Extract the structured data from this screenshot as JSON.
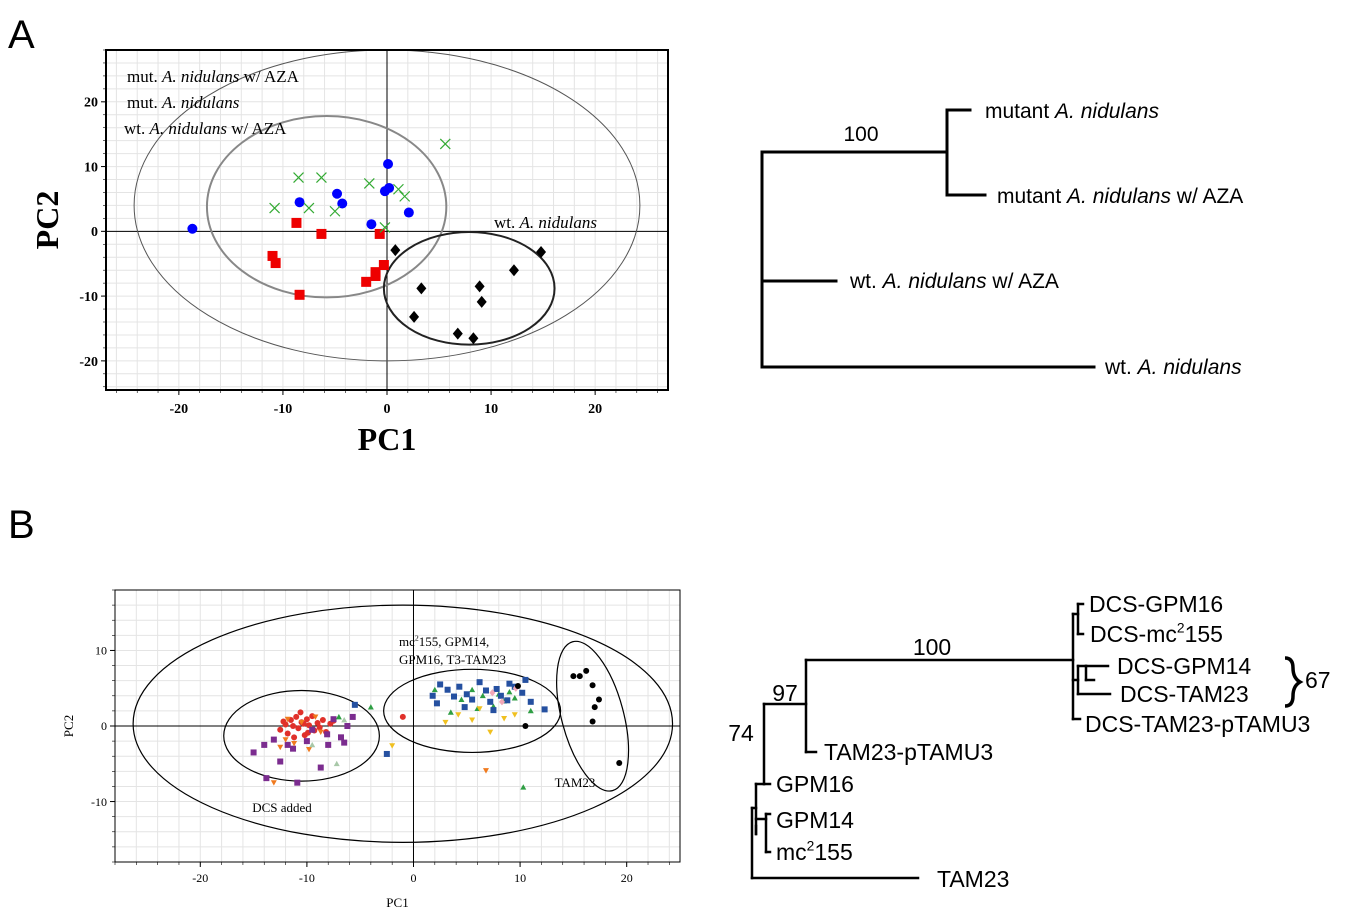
{
  "panels": {
    "A": {
      "label": "A"
    },
    "B": {
      "label": "B"
    }
  },
  "chart_data": [
    {
      "id": "A_pca",
      "type": "scatter",
      "xlabel": "PC1",
      "ylabel": "PC2",
      "xlim": [
        -27,
        27
      ],
      "ylim": [
        -24.5,
        28
      ],
      "xticks": [
        -20,
        -10,
        0,
        10,
        20
      ],
      "yticks": [
        -20,
        -10,
        0,
        10,
        20
      ],
      "grid": true,
      "legend_lines": [
        {
          "parts": [
            [
              "mut. ",
              false
            ],
            [
              "A. nidulans",
              true
            ],
            [
              " w/ AZA",
              false
            ]
          ]
        },
        {
          "parts": [
            [
              "mut. ",
              false
            ],
            [
              "A. nidulans",
              true
            ]
          ]
        },
        {
          "parts": [
            [
              "wt. ",
              false
            ],
            [
              "A. nidulans",
              true
            ],
            [
              " w/ AZA",
              false
            ]
          ]
        }
      ],
      "group_label": {
        "parts": [
          [
            "wt. ",
            false
          ],
          [
            "A. nidulans",
            true
          ]
        ]
      },
      "ellipses": [
        {
          "cx": 0,
          "cy": 4,
          "rx": 24.3,
          "ry": 24,
          "color": "#555555",
          "width": 1
        },
        {
          "cx": -5.8,
          "cy": 3.8,
          "rx": 11.5,
          "ry": 14,
          "color": "#888888",
          "width": 2
        },
        {
          "cx": 7.9,
          "cy": -8.8,
          "rx": 8.2,
          "ry": 8.7,
          "color": "#222222",
          "width": 2
        }
      ],
      "series": [
        {
          "marker": "circle",
          "color": "#0000ff",
          "x": [
            -18.7,
            -8.4,
            -4.8,
            -4.3,
            -1.5,
            -0.2,
            0.2,
            0.1,
            2.1
          ],
          "y": [
            0.4,
            4.5,
            5.8,
            4.3,
            1.1,
            6.2,
            6.7,
            10.4,
            2.9
          ]
        },
        {
          "marker": "square",
          "color": "#ee0000",
          "x": [
            -11,
            -10.7,
            -8.7,
            -8.4,
            -6.3,
            -2,
            -1.1,
            -1.1,
            -0.7,
            -0.3
          ],
          "y": [
            -3.8,
            -4.9,
            1.3,
            -9.8,
            -0.4,
            -7.8,
            -6.3,
            -6.9,
            -0.4,
            -5.2
          ],
          "width": [
            1,
            1,
            1,
            1,
            1,
            1,
            1,
            1,
            1,
            1
          ]
        },
        {
          "marker": "x",
          "color": "#33aa33",
          "x": [
            -10.8,
            -8.5,
            -7.5,
            -6.3,
            -5,
            -1.7,
            -0.2,
            1.1,
            1.7,
            5.6
          ],
          "y": [
            3.6,
            8.3,
            3.6,
            8.3,
            3.1,
            7.4,
            0.6,
            6.5,
            5.4,
            13.5
          ]
        },
        {
          "marker": "diamond",
          "color": "#000000",
          "x": [
            0.8,
            2.6,
            3.3,
            6.8,
            8.3,
            8.9,
            9.1,
            12.2,
            14.8
          ],
          "y": [
            -2.9,
            -13.2,
            -8.8,
            -15.8,
            -16.5,
            -8.5,
            -10.9,
            -6,
            -3.2
          ]
        }
      ]
    },
    {
      "id": "A_tree",
      "type": "dendrogram",
      "leaves": [
        {
          "parts": [
            [
              "mutant  ",
              false
            ],
            [
              "A. nidulans",
              true
            ]
          ]
        },
        {
          "parts": [
            [
              "mutant ",
              false
            ],
            [
              "A. nidulans",
              true
            ],
            [
              "  w/ AZA",
              false
            ]
          ]
        },
        {
          "parts": [
            [
              "wt. ",
              false
            ],
            [
              "A. nidulans",
              true
            ],
            [
              " w/ AZA",
              false
            ]
          ]
        },
        {
          "parts": [
            [
              "wt. ",
              false
            ],
            [
              "A. nidulans",
              true
            ]
          ]
        }
      ],
      "bootstrap": [
        "100"
      ]
    },
    {
      "id": "B_pca",
      "type": "scatter",
      "xlabel": "PC1",
      "ylabel": "PC2",
      "xlim": [
        -28,
        25
      ],
      "ylim": [
        -18,
        18
      ],
      "xticks": [
        -20,
        -10,
        0,
        10,
        20
      ],
      "yticks": [
        -10,
        0,
        10
      ],
      "grid": true,
      "group_labels": {
        "dcs": "DCS added",
        "mix_line1_pre": "mc",
        "mix_line1_sup": "2",
        "mix_line1_post": "155, GPM14,",
        "mix_line2": "GPM16, T3-TAM23",
        "tam": "TAM23"
      },
      "ellipses": [
        {
          "cx": -1,
          "cy": 0.3,
          "rx": 25.3,
          "ry": 15.7,
          "color": "#000000",
          "width": 1.2,
          "rot": 0
        },
        {
          "cx": -10.5,
          "cy": -1.3,
          "rx": 7.3,
          "ry": 6,
          "color": "#000000",
          "width": 1.2,
          "rot": 0
        },
        {
          "cx": 5.5,
          "cy": 2,
          "rx": 8.3,
          "ry": 5.5,
          "color": "#000000",
          "width": 1.2,
          "rot": 0
        },
        {
          "cx": 16.8,
          "cy": 1.3,
          "rx": 2.9,
          "ry": 10.2,
          "color": "#000000",
          "width": 1.2,
          "rot": -15
        }
      ],
      "series": [
        {
          "marker": "circle",
          "color": "#e0302a",
          "x": [
            -12.5,
            -12,
            -11.8,
            -11.5,
            -11.3,
            -11,
            -10.8,
            -10.5,
            -10.2,
            -10,
            -9.8,
            -9.5,
            -9.3,
            -9,
            -8.8,
            -8.5,
            -8.2,
            -7.8,
            -7.5,
            -11.2,
            -10.6,
            -9.9,
            -12.2,
            -10.3,
            -1
          ],
          "y": [
            -0.5,
            0.2,
            -1,
            0.8,
            0,
            1.2,
            -0.3,
            0.5,
            -1.2,
            0.9,
            0.1,
            1.3,
            -0.6,
            0.4,
            -0.2,
            0.8,
            -0.8,
            0.3,
            0.7,
            -1.5,
            1.8,
            -0.9,
            0.6,
            0.3,
            1.2
          ]
        },
        {
          "marker": "square",
          "color": "#7b2c8f",
          "x": [
            -15,
            -14,
            -13.8,
            -12.5,
            -11.8,
            -10.9,
            -10,
            -8.7,
            -8,
            -7.5,
            -6.8,
            -6.2,
            -5.7,
            -13.1,
            -11.3,
            -9.5,
            -8.1,
            -6.5
          ],
          "y": [
            -3.5,
            -2.5,
            -6.9,
            -4.7,
            -2.5,
            -7.5,
            -2,
            -5.5,
            -2.5,
            0.9,
            -1.5,
            0,
            1.2,
            -1.8,
            -3,
            -0.5,
            -1.1,
            -2.2
          ]
        },
        {
          "marker": "tri_down",
          "color": "#f07a1e",
          "x": [
            -13.1,
            -12,
            -11.2,
            -10.5,
            -9.8,
            -9.2,
            -8.7,
            -12.5,
            -11.8,
            6.8
          ],
          "y": [
            -7.5,
            -1.8,
            -2.3,
            0.5,
            -3.1,
            1.2,
            -0.8,
            -2.8,
            0.9,
            -5.9
          ]
        },
        {
          "marker": "triangle",
          "color": "#2e9e43",
          "x": [
            -7,
            -4,
            2,
            4.5,
            5.5,
            6.5,
            7.5,
            8.5,
            9,
            9.5,
            10.3,
            11,
            3.5,
            6,
            8
          ],
          "y": [
            1.2,
            2.5,
            4.8,
            3.5,
            4.8,
            4,
            2.6,
            3.3,
            4.5,
            3.7,
            -8.1,
            2,
            1.8,
            2.3,
            4.2
          ]
        },
        {
          "marker": "triangle",
          "color": "#a8c8a8",
          "x": [
            -9.5,
            -7.2,
            -6.5
          ],
          "y": [
            -2.5,
            -5,
            0.8
          ]
        },
        {
          "marker": "square",
          "color": "#2550a0",
          "x": [
            -5.5,
            -2.5,
            1.8,
            2.5,
            3.2,
            3.8,
            4.3,
            5,
            5.5,
            6.2,
            6.8,
            7.2,
            7.8,
            8.2,
            8.8,
            9.5,
            10.2,
            10.5,
            11,
            2.2,
            4.8,
            7.5,
            9,
            12.3
          ],
          "y": [
            2.8,
            -3.7,
            4,
            5.5,
            4.8,
            3.9,
            5.2,
            4.2,
            3.5,
            5.8,
            4.7,
            3.2,
            4.9,
            4,
            3.4,
            5.2,
            4.4,
            6.1,
            3.2,
            3,
            2.5,
            2.1,
            5.6,
            2.2
          ]
        },
        {
          "marker": "tri_down",
          "color": "#f0c020",
          "x": [
            3,
            4.2,
            5.5,
            6.2,
            7.2,
            8.5,
            9.5,
            -2
          ],
          "y": [
            0.5,
            1.5,
            0.8,
            2.3,
            -0.8,
            1,
            1.5,
            -2.6
          ]
        },
        {
          "marker": "diamond",
          "color": "#f2a8b8",
          "x": [
            7.4,
            8.3,
            9.6
          ],
          "y": [
            4.4,
            3.2,
            5
          ]
        },
        {
          "marker": "circle",
          "color": "#000000",
          "x": [
            15,
            15.6,
            16.2,
            16.8,
            17,
            17.4,
            16.8,
            19.3,
            9.8,
            10.5
          ],
          "y": [
            6.6,
            6.6,
            7.3,
            5.4,
            2.5,
            3.5,
            0.6,
            -4.9,
            5.3,
            0
          ]
        }
      ]
    },
    {
      "id": "B_tree",
      "type": "dendrogram",
      "leaves": [
        {
          "pre": "DCS-GPM16",
          "sup": "",
          "post": ""
        },
        {
          "pre": "DCS-mc",
          "sup": "2",
          "post": "155"
        },
        {
          "pre": "DCS-GPM14",
          "sup": "",
          "post": ""
        },
        {
          "pre": "DCS-TAM23",
          "sup": "",
          "post": ""
        },
        {
          "pre": "DCS-TAM23-pTAMU3",
          "sup": "",
          "post": ""
        },
        {
          "pre": "TAM23-pTAMU3",
          "sup": "",
          "post": ""
        },
        {
          "pre": "GPM16",
          "sup": "",
          "post": ""
        },
        {
          "pre": "GPM14",
          "sup": "",
          "post": ""
        },
        {
          "pre": "mc",
          "sup": "2",
          "post": "155"
        },
        {
          "pre": "TAM23",
          "sup": "",
          "post": ""
        }
      ],
      "bootstrap": [
        "100",
        "97",
        "74",
        "67"
      ]
    }
  ]
}
